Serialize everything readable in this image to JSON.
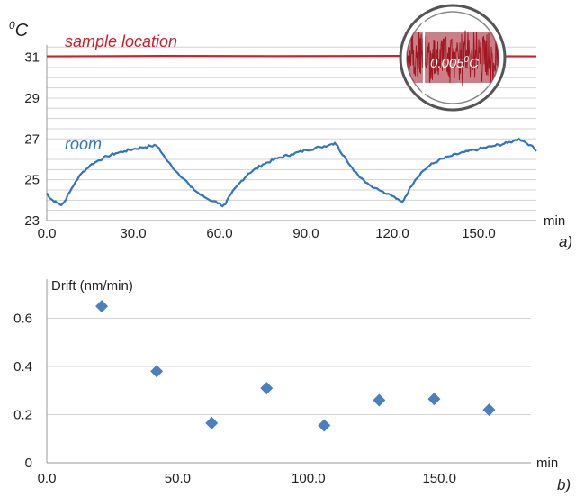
{
  "chart_data": [
    {
      "type": "line",
      "panel_label": "a)",
      "y_unit_label": "0C",
      "y_unit_sup": "0",
      "y_unit_main": "C",
      "x_unit_label": "min",
      "xlim": [
        0,
        170
      ],
      "ylim": [
        23,
        31.6
      ],
      "x_ticks": [
        0,
        30,
        60,
        90,
        120,
        150
      ],
      "x_tick_labels": [
        "0.0",
        "30.0",
        "60.0",
        "90.0",
        "120.0",
        "150.0"
      ],
      "y_ticks": [
        23,
        25,
        27,
        29,
        31
      ],
      "y_tick_labels": [
        "23",
        "25",
        "27",
        "29",
        "31"
      ],
      "grid": true,
      "series": [
        {
          "name": "sample location",
          "color": "#d0202e",
          "x": [
            0,
            40,
            80,
            120,
            170
          ],
          "y": [
            31.05,
            31.07,
            31.06,
            31.07,
            31.05
          ]
        },
        {
          "name": "room",
          "color": "#2e75c2",
          "x": [
            0,
            1,
            2,
            3,
            4,
            5,
            6,
            8,
            10,
            12,
            15,
            18,
            21,
            24,
            27,
            30,
            33,
            36,
            38,
            39,
            40,
            42,
            45,
            48,
            50,
            53,
            56,
            58,
            60,
            61,
            62,
            64,
            67,
            70,
            75,
            80,
            85,
            90,
            95,
            99,
            100,
            101,
            102,
            104,
            106,
            108,
            110,
            112,
            114,
            116,
            118,
            120,
            122,
            123,
            124,
            125,
            126,
            128,
            130,
            133,
            136,
            140,
            145,
            150,
            155,
            160,
            162,
            164,
            166,
            168,
            170
          ],
          "y": [
            24.35,
            24.1,
            24.0,
            23.95,
            23.85,
            23.75,
            23.9,
            24.4,
            24.9,
            25.3,
            25.7,
            25.95,
            26.15,
            26.3,
            26.4,
            26.5,
            26.58,
            26.65,
            26.67,
            26.55,
            26.3,
            25.9,
            25.4,
            25.0,
            24.65,
            24.3,
            24.05,
            23.95,
            23.85,
            23.7,
            23.8,
            24.3,
            24.85,
            25.3,
            25.75,
            26.05,
            26.25,
            26.45,
            26.6,
            26.75,
            26.8,
            26.68,
            26.35,
            26.0,
            25.6,
            25.25,
            25.0,
            24.75,
            24.6,
            24.45,
            24.3,
            24.2,
            24.05,
            23.95,
            24.0,
            24.25,
            24.6,
            25.0,
            25.35,
            25.7,
            25.95,
            26.15,
            26.35,
            26.5,
            26.65,
            26.8,
            26.9,
            27.0,
            26.85,
            26.7,
            26.4
          ]
        }
      ],
      "inset": {
        "label": "0.005",
        "label_unit_sup": "0",
        "label_unit_main": "C",
        "noise_color": "#a01824"
      }
    },
    {
      "type": "scatter",
      "panel_label": "b)",
      "ylabel": "Drift (nm/min)",
      "x_unit_label": "min",
      "xlim": [
        0,
        185
      ],
      "ylim": [
        0,
        0.8
      ],
      "x_ticks": [
        0,
        50,
        100,
        150
      ],
      "x_tick_labels": [
        "0.0",
        "50.0",
        "100.0",
        "150.0"
      ],
      "y_ticks": [
        0,
        0.2,
        0.4,
        0.6
      ],
      "y_tick_labels": [
        "0",
        "0.2",
        "0.4",
        "0.6"
      ],
      "grid": true,
      "marker_color": "#4a7fc4",
      "x": [
        21,
        42,
        63,
        84,
        106,
        127,
        148,
        169
      ],
      "y": [
        0.65,
        0.38,
        0.165,
        0.31,
        0.155,
        0.26,
        0.265,
        0.22
      ]
    }
  ]
}
